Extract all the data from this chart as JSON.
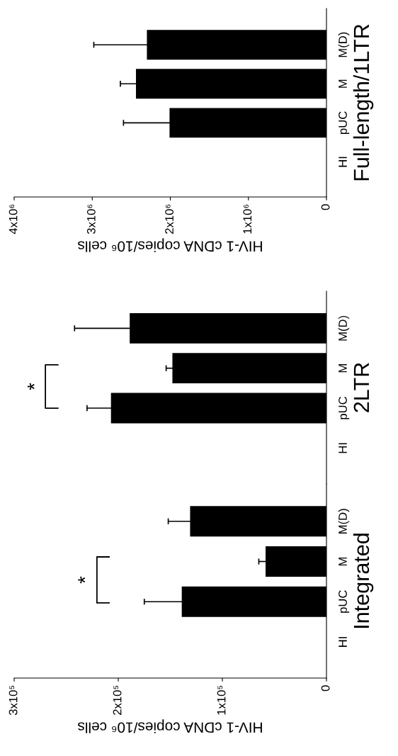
{
  "chart_data": [
    {
      "type": "bar",
      "orientation": "horizontal",
      "ylabel": "Integrated",
      "xlabel": "HIV-1 cDNA copies/10⁶ cells",
      "categories": [
        "M(D)",
        "M",
        "pUC",
        "HI"
      ],
      "values": [
        131000,
        58500,
        139000,
        0
      ],
      "errors": [
        21000,
        6500,
        36000,
        null
      ],
      "color": "#000000",
      "xlim": [
        300000,
        0
      ],
      "xticks": [
        {
          "value": 300000,
          "label": "3x10⁵"
        },
        {
          "value": 200000,
          "label": "2x10⁵"
        },
        {
          "value": 100000,
          "label": "1x10⁵"
        },
        0
      ],
      "annotations": [
        "*"
      ]
    },
    {
      "type": "bar",
      "orientation": "horizontal",
      "ylabel": "2LTR",
      "categories": [
        "M(D)",
        "M",
        "pUC",
        "HI"
      ],
      "values": [
        189000,
        148000,
        207000,
        0
      ],
      "errors": [
        53000,
        6000,
        23000,
        null
      ],
      "color": "#000000",
      "xlim": [
        300000,
        0
      ],
      "tick_labels": "y",
      "annotations": [
        "*"
      ]
    },
    {
      "type": "bar",
      "orientation": "horizontal",
      "ylabel": "Full-length/1LTR",
      "xlabel": "HIV-1 cDNA copies/10⁶ cells",
      "categories": [
        "M(D)",
        "M",
        "pUC",
        "HI"
      ],
      "values": [
        2300000,
        2440000,
        2010000,
        0
      ],
      "errors": [
        680000,
        200000,
        590000,
        null
      ],
      "color": "#000000",
      "xlim": [
        4000000,
        0
      ],
      "xticks": [
        {
          "value": 4000000,
          "label": "4x10⁶"
        },
        {
          "value": 3000000,
          "label": "3x10⁶"
        },
        {
          "value": 2000000,
          "label": "2x10⁶"
        },
        {
          "value": 1000000,
          "label": "1x10⁶"
        },
        0
      ]
    }
  ]
}
